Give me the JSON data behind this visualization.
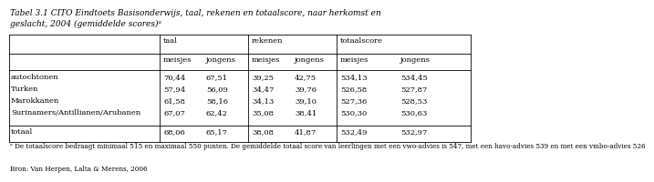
{
  "title": "Tabel 3.1 CITO Eindtoets Basisonderwijs, taal, rekenen en totaalscore, naar herkomst en\ngeslacht, 2004 (gemiddelde scores)ᵃ",
  "col_groups": [
    "taal",
    "rekenen",
    "totaalscore"
  ],
  "col_subheaders": [
    "meisjes",
    "jongens"
  ],
  "rows": [
    {
      "label": "autochtonen",
      "taal_m": "70,44",
      "taal_j": "67,51",
      "rek_m": "39,25",
      "rek_j": "42,75",
      "tot_m": "534,13",
      "tot_j": "534,45"
    },
    {
      "label": "Turken",
      "taal_m": "57,94",
      "taal_j": "56,09",
      "rek_m": "34,47",
      "rek_j": "39,76",
      "tot_m": "526,58",
      "tot_j": "527,87"
    },
    {
      "label": "Marokkanen",
      "taal_m": "61,58",
      "taal_j": "58,16",
      "rek_m": "34,13",
      "rek_j": "39,10",
      "tot_m": "527,36",
      "tot_j": "528,53"
    },
    {
      "label": "Surinamers/Antillianen/Arubanen",
      "taal_m": "67,07",
      "taal_j": "62,42",
      "rek_m": "35,08",
      "rek_j": "38,41",
      "tot_m": "530,30",
      "tot_j": "530,63"
    }
  ],
  "totaal": {
    "label": "totaal",
    "taal_m": "68,06",
    "taal_j": "65,17",
    "rek_m": "38,08",
    "rek_j": "41,87",
    "tot_m": "532,49",
    "tot_j": "532,97"
  },
  "footnote": "ᵃ De totaalscore bedraagt minimaal 515 en maximaal 550 punten. De gemiddelde totaal score van leerlingen met een vwo-advies is 547, met een havo-advies 539 en met een vmbo-advies 526",
  "source": "Bron: Van Herpen, Lalta & Merens, 2006",
  "bg_color": "#ffffff",
  "text_color": "#000000",
  "font_size": 6.0,
  "title_font_size": 6.5
}
